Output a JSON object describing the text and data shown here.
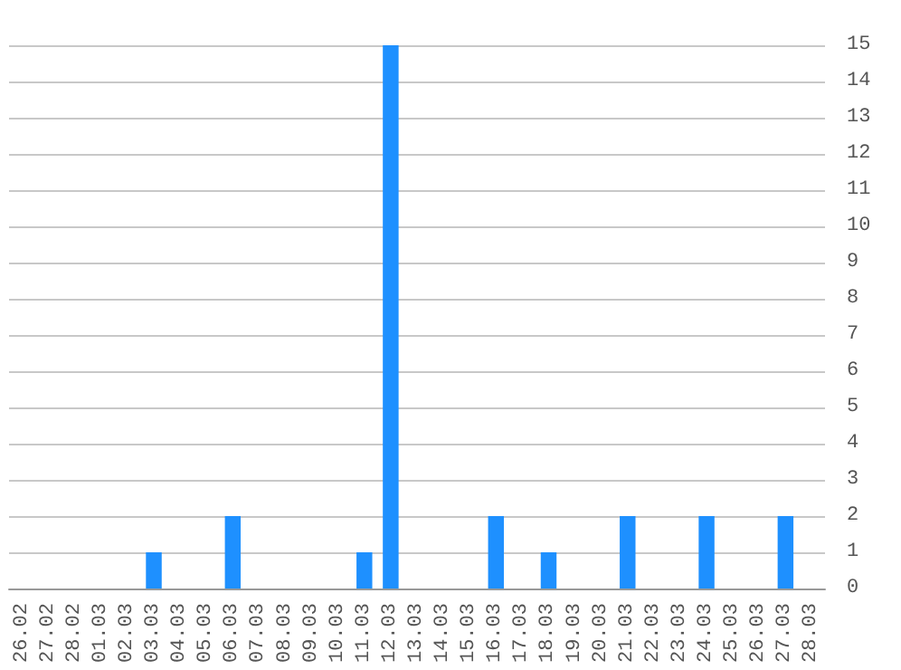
{
  "chart_data": {
    "type": "bar",
    "categories": [
      "26.02",
      "27.02",
      "28.02",
      "01.03",
      "02.03",
      "03.03",
      "04.03",
      "05.03",
      "06.03",
      "07.03",
      "08.03",
      "09.03",
      "10.03",
      "11.03",
      "12.03",
      "13.03",
      "14.03",
      "15.03",
      "16.03",
      "17.03",
      "18.03",
      "19.03",
      "20.03",
      "21.03",
      "22.03",
      "23.03",
      "24.03",
      "25.03",
      "26.03",
      "27.03",
      "28.03"
    ],
    "values": [
      0,
      0,
      0,
      0,
      0,
      1,
      0,
      0,
      2,
      0,
      0,
      0,
      0,
      1,
      15,
      0,
      0,
      0,
      2,
      0,
      1,
      0,
      0,
      2,
      0,
      0,
      2,
      0,
      0,
      2,
      0
    ],
    "color": "#1e90ff",
    "ylim": [
      0,
      15
    ],
    "yticks": [
      0,
      1,
      2,
      3,
      4,
      5,
      6,
      7,
      8,
      9,
      10,
      11,
      12,
      13,
      14,
      15
    ],
    "grid": "y"
  }
}
